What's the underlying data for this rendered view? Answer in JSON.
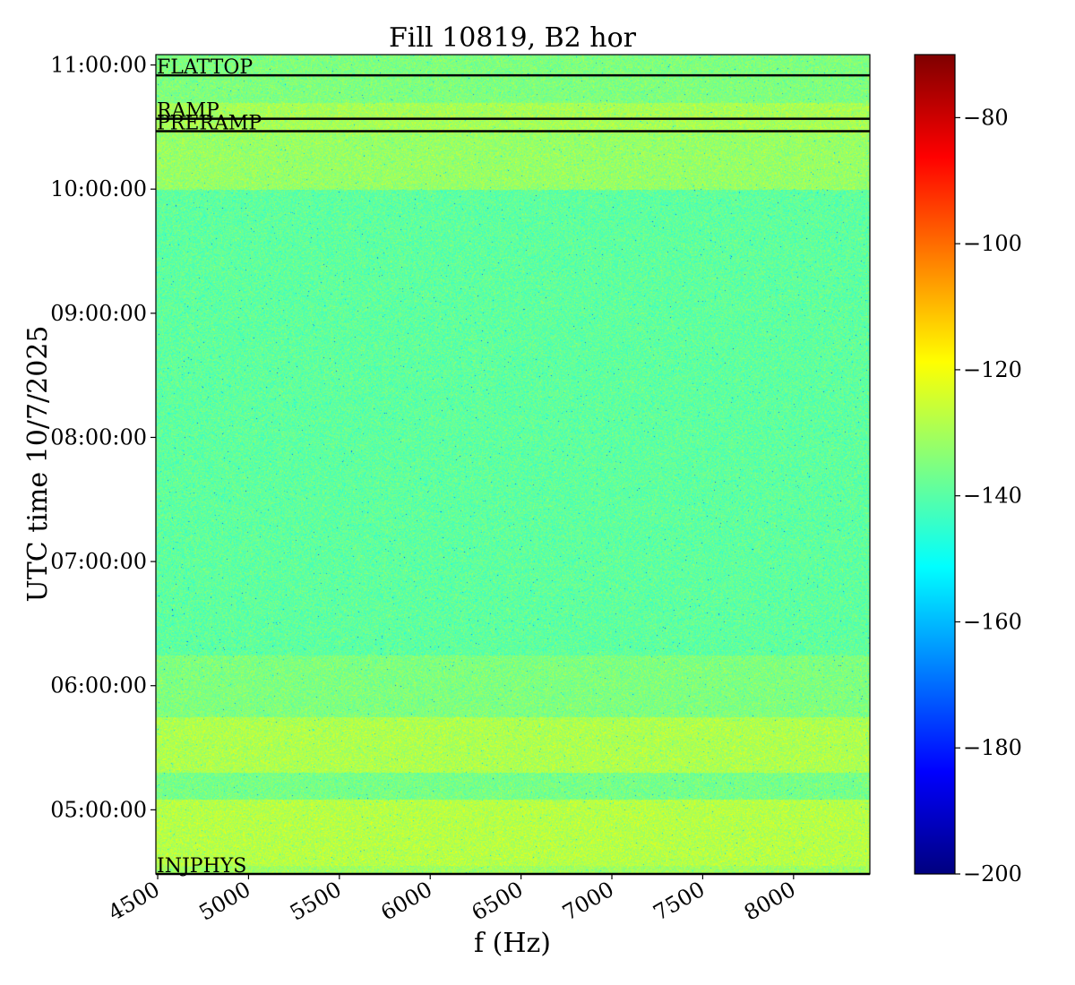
{
  "chart_data": {
    "type": "heatmap",
    "title": "Fill 10819, B2 hor",
    "xlabel": "f (Hz)",
    "ylabel": "UTC time 10/7/2025",
    "xlim": [
      4490,
      8420
    ],
    "x_ticks": [
      4500,
      5000,
      5500,
      6000,
      6500,
      7000,
      7500,
      8000
    ],
    "x_tick_labels": [
      "4500",
      "5000",
      "5500",
      "6000",
      "6500",
      "7000",
      "7500",
      "8000"
    ],
    "ylim": [
      "04:29:00",
      "11:05:00"
    ],
    "y_ticks": [
      "05:00:00",
      "06:00:00",
      "07:00:00",
      "08:00:00",
      "09:00:00",
      "10:00:00",
      "11:00:00"
    ],
    "y_tick_labels": [
      "05:00:00",
      "06:00:00",
      "07:00:00",
      "08:00:00",
      "09:00:00",
      "10:00:00",
      "11:00:00"
    ],
    "colormap": "jet",
    "colorbar": {
      "range": [
        -200,
        -70
      ],
      "ticks": [
        -80,
        -100,
        -120,
        -140,
        -160,
        -180,
        -200
      ],
      "tick_labels": [
        "−80",
        "−100",
        "−120",
        "−140",
        "−160",
        "−180",
        "−200"
      ]
    },
    "typical_level": -138,
    "level_bands": [
      {
        "from": "04:29:00",
        "to": "04:33:00",
        "level": -131
      },
      {
        "from": "04:33:00",
        "to": "05:05:00",
        "level": -128
      },
      {
        "from": "05:05:00",
        "to": "05:18:00",
        "level": -136
      },
      {
        "from": "05:18:00",
        "to": "05:45:00",
        "level": -129
      },
      {
        "from": "05:45:00",
        "to": "06:15:00",
        "level": -135
      },
      {
        "from": "06:15:00",
        "to": "10:00:00",
        "level": -139
      },
      {
        "from": "10:00:00",
        "to": "10:27:00",
        "level": -132
      },
      {
        "from": "10:27:00",
        "to": "10:42:00",
        "level": -130
      },
      {
        "from": "10:42:00",
        "to": "11:05:00",
        "level": -135
      }
    ],
    "phase_markers": [
      {
        "label": "INJPHYS",
        "time": "04:29:00"
      },
      {
        "label": "PRERAMP",
        "time": "10:28:00"
      },
      {
        "label": "RAMP",
        "time": "10:34:00"
      },
      {
        "label": "FLATTOP",
        "time": "10:55:00"
      }
    ]
  }
}
